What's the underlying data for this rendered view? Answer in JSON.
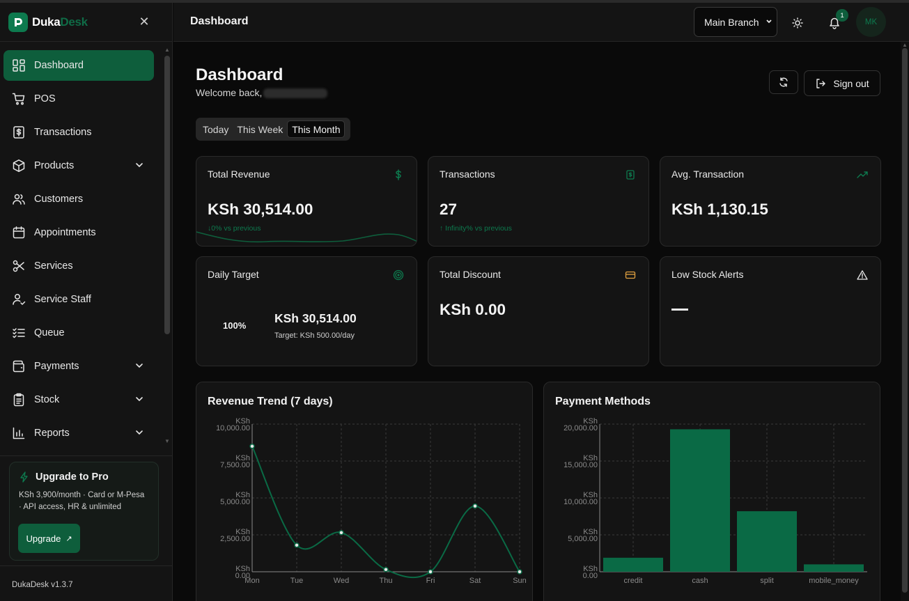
{
  "app": {
    "brand_a": "Duka",
    "brand_b": "Desk",
    "version": "DukaDesk v1.3.7"
  },
  "sidebar": {
    "items": [
      {
        "label": "Dashboard",
        "icon": "dashboard-icon",
        "active": true
      },
      {
        "label": "POS",
        "icon": "cart-icon"
      },
      {
        "label": "Transactions",
        "icon": "receipt-icon"
      },
      {
        "label": "Products",
        "icon": "box-icon",
        "expandable": true
      },
      {
        "label": "Customers",
        "icon": "users-icon"
      },
      {
        "label": "Appointments",
        "icon": "calendar-icon"
      },
      {
        "label": "Services",
        "icon": "scissors-icon"
      },
      {
        "label": "Service Staff",
        "icon": "user-check-icon"
      },
      {
        "label": "Queue",
        "icon": "list-check-icon"
      },
      {
        "label": "Payments",
        "icon": "wallet-icon",
        "expandable": true
      },
      {
        "label": "Stock",
        "icon": "clipboard-icon",
        "expandable": true
      },
      {
        "label": "Reports",
        "icon": "bar-chart-icon",
        "expandable": true
      }
    ],
    "upgrade": {
      "title": "Upgrade to Pro",
      "desc": "KSh 3,900/month · Card or M-Pesa · API access, HR & unlimited",
      "button": "Upgrade"
    }
  },
  "topbar": {
    "title": "Dashboard",
    "branch": "Main Branch",
    "notifications": "1",
    "avatar": "MK"
  },
  "main": {
    "heading": "Dashboard",
    "welcome": "Welcome back,",
    "signout": "Sign out",
    "tabs": [
      "Today",
      "This Week",
      "This Month"
    ],
    "active_tab": "This Month"
  },
  "cards": {
    "revenue": {
      "label": "Total Revenue",
      "value": "KSh 30,514.00",
      "sub": "↓0% vs previous"
    },
    "transactions": {
      "label": "Transactions",
      "value": "27",
      "sub": "↑ Infinity% vs previous"
    },
    "avg": {
      "label": "Avg. Transaction",
      "value": "KSh 1,130.15"
    },
    "target": {
      "label": "Daily Target",
      "percent": "100%",
      "value": "KSh 30,514.00",
      "sub": "Target: KSh 500.00/day",
      "progress": 1.0
    },
    "discount": {
      "label": "Total Discount",
      "value": "KSh 0.00"
    },
    "lowstock": {
      "label": "Low Stock Alerts",
      "value": "—"
    }
  },
  "colors": {
    "accent": "#0e5e3c",
    "accent_light": "#0d7a4e",
    "bar": "#0a6a45",
    "warn": "#e0a040"
  },
  "chart_data": [
    {
      "type": "line",
      "title": "Revenue Trend (7 days)",
      "categories": [
        "Mon",
        "Tue",
        "Wed",
        "Thu",
        "Fri",
        "Sat",
        "Sun"
      ],
      "values": [
        8500,
        1800,
        2650,
        150,
        0,
        4450,
        0
      ],
      "ylim": [
        0,
        10000
      ],
      "yticks": [
        "KSh 0.00",
        "KSh 2,500.00",
        "KSh 5,000.00",
        "KSh 7,500.00",
        "KSh 10,000.00"
      ],
      "grid": true
    },
    {
      "type": "bar",
      "title": "Payment Methods",
      "categories": [
        "credit",
        "cash",
        "split",
        "mobile_money"
      ],
      "values": [
        1900,
        19300,
        8200,
        1000
      ],
      "ylim": [
        0,
        20000
      ],
      "yticks": [
        "KSh 0.00",
        "KSh 5,000.00",
        "KSh 10,000.00",
        "KSh 15,000.00",
        "KSh 20,000.00"
      ],
      "grid": true
    }
  ]
}
